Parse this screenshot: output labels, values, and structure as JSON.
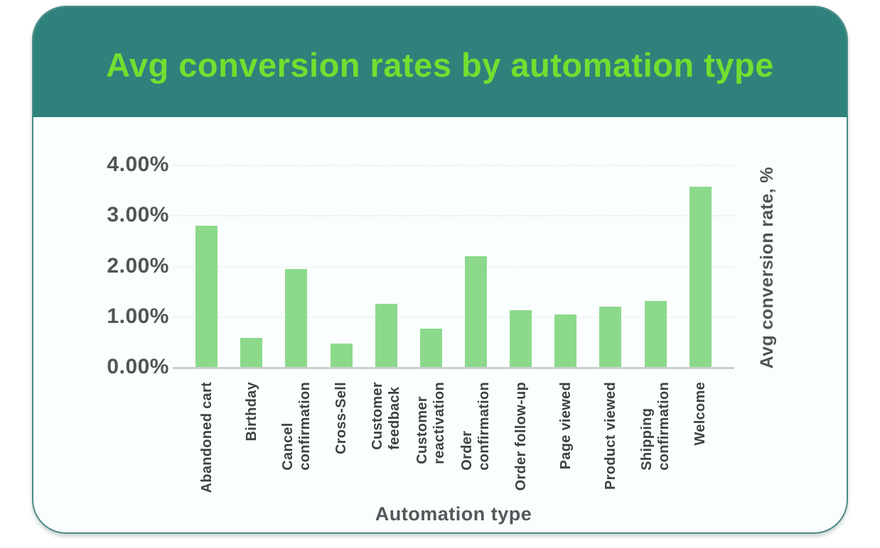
{
  "card": {
    "title": "Avg conversion rates by automation type",
    "title_color": "#73de2f",
    "header_bg": "#2f817b",
    "body_bg": "#fbfefe",
    "border_color": "#4a8c86"
  },
  "chart_data": {
    "type": "bar",
    "title": "Avg conversion rates by automation type",
    "categories": [
      "Abandoned cart",
      "Birthday",
      "Cancel\nconfirmation",
      "Cross-Sell",
      "Customer\nfeedback",
      "Customer\nreactivation",
      "Order\nconfirmation",
      "Order follow-up",
      "Page viewed",
      "Product viewed",
      "Shipping\nconfirmation",
      "Welcome"
    ],
    "values": [
      2.79,
      0.57,
      1.93,
      0.47,
      1.25,
      0.76,
      2.19,
      1.12,
      1.04,
      1.19,
      1.3,
      3.57
    ],
    "value_unit": "%",
    "xlabel": "Automation type",
    "ylabel": "Avg conversion rate, %",
    "yticks": [
      "4.00%",
      "3.00%",
      "2.00%",
      "1.00%",
      "0.00%"
    ],
    "ylim": [
      0,
      4
    ],
    "bar_color": "#8cd98c",
    "grid": true,
    "legend": false,
    "orientation": "vertical"
  }
}
